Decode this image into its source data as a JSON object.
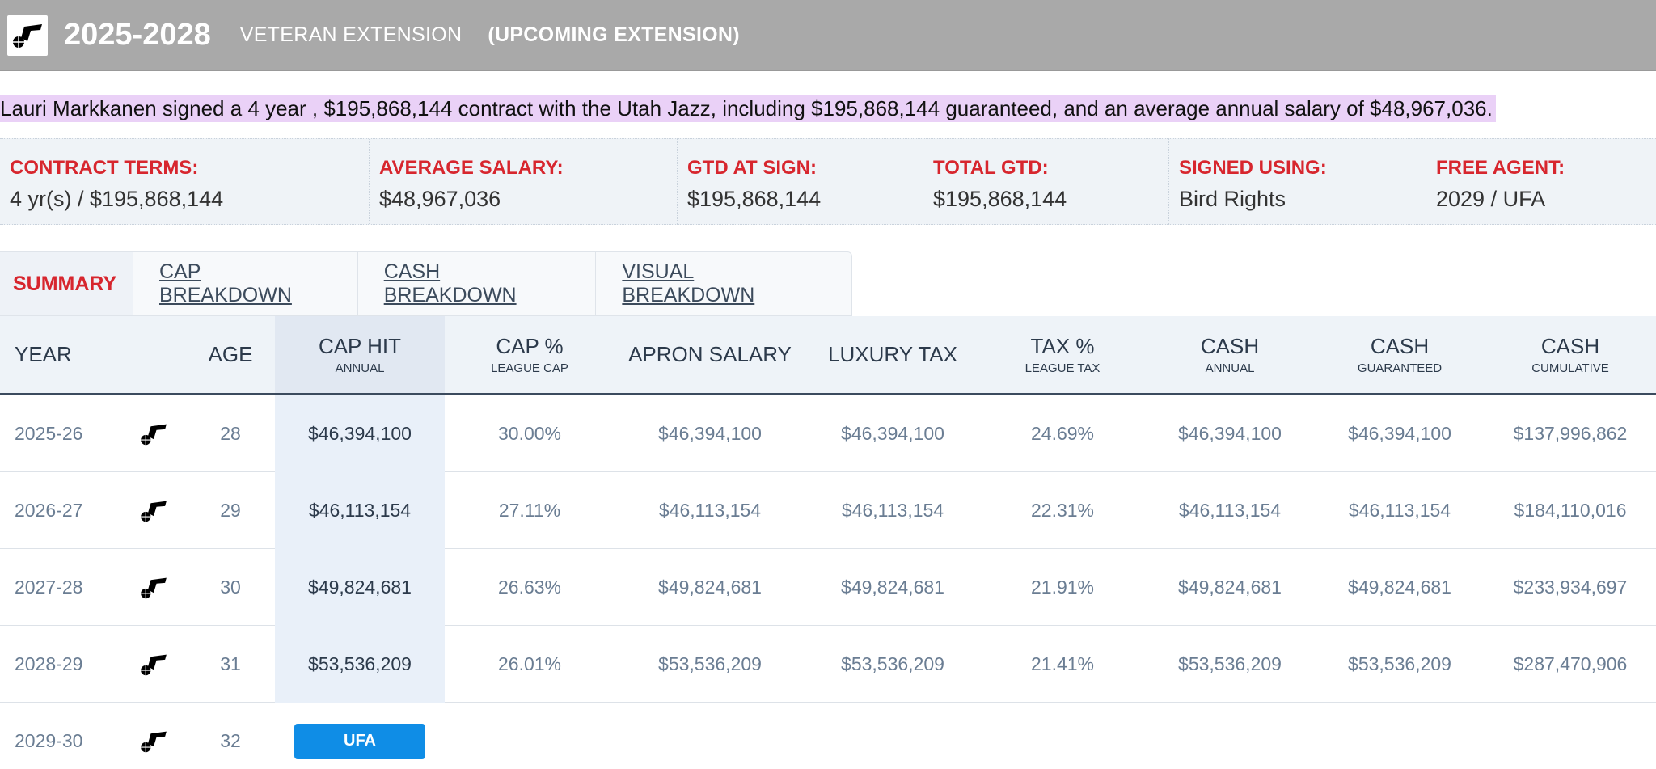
{
  "header": {
    "years": "2025-2028",
    "contract_type": "VETERAN EXTENSION",
    "note": "(UPCOMING EXTENSION)",
    "logo_icon": "utah-jazz-logo-icon"
  },
  "summary_text": "Lauri Markkanen signed a 4 year , $195,868,144 contract with the Utah Jazz, including $195,868,144 guaranteed, and an average annual salary of $48,967,036.",
  "terms": [
    {
      "label": "CONTRACT TERMS:",
      "value": "4 yr(s) / $195,868,144"
    },
    {
      "label": "AVERAGE SALARY:",
      "value": "$48,967,036"
    },
    {
      "label": "GTD AT SIGN:",
      "value": "$195,868,144"
    },
    {
      "label": "TOTAL GTD:",
      "value": "$195,868,144"
    },
    {
      "label": "SIGNED USING:",
      "value": "Bird Rights"
    },
    {
      "label": "FREE AGENT:",
      "value": "2029 / UFA"
    }
  ],
  "tabs": [
    {
      "label": "SUMMARY",
      "active": true
    },
    {
      "label": "CAP BREAKDOWN",
      "active": false
    },
    {
      "label": "CASH BREAKDOWN",
      "active": false
    },
    {
      "label": "VISUAL BREAKDOWN",
      "active": false
    }
  ],
  "table": {
    "headers": [
      {
        "main": "YEAR",
        "sub": ""
      },
      {
        "main": "",
        "sub": ""
      },
      {
        "main": "AGE",
        "sub": ""
      },
      {
        "main": "CAP HIT",
        "sub": "ANNUAL"
      },
      {
        "main": "CAP %",
        "sub": "LEAGUE CAP"
      },
      {
        "main": "APRON SALARY",
        "sub": ""
      },
      {
        "main": "LUXURY TAX",
        "sub": ""
      },
      {
        "main": "TAX %",
        "sub": "LEAGUE TAX"
      },
      {
        "main": "CASH",
        "sub": "ANNUAL"
      },
      {
        "main": "CASH",
        "sub": "GUARANTEED"
      },
      {
        "main": "CASH",
        "sub": "CUMULATIVE"
      }
    ],
    "rows": [
      {
        "year": "2025-26",
        "age": "28",
        "cap_hit": "$46,394,100",
        "cap_pct": "30.00%",
        "apron": "$46,394,100",
        "lux_tax": "$46,394,100",
        "tax_pct": "24.69%",
        "cash_annual": "$46,394,100",
        "cash_gtd": "$46,394,100",
        "cash_cum": "$137,996,862"
      },
      {
        "year": "2026-27",
        "age": "29",
        "cap_hit": "$46,113,154",
        "cap_pct": "27.11%",
        "apron": "$46,113,154",
        "lux_tax": "$46,113,154",
        "tax_pct": "22.31%",
        "cash_annual": "$46,113,154",
        "cash_gtd": "$46,113,154",
        "cash_cum": "$184,110,016"
      },
      {
        "year": "2027-28",
        "age": "30",
        "cap_hit": "$49,824,681",
        "cap_pct": "26.63%",
        "apron": "$49,824,681",
        "lux_tax": "$49,824,681",
        "tax_pct": "21.91%",
        "cash_annual": "$49,824,681",
        "cash_gtd": "$49,824,681",
        "cash_cum": "$233,934,697"
      },
      {
        "year": "2028-29",
        "age": "31",
        "cap_hit": "$53,536,209",
        "cap_pct": "26.01%",
        "apron": "$53,536,209",
        "lux_tax": "$53,536,209",
        "tax_pct": "21.41%",
        "cash_annual": "$53,536,209",
        "cash_gtd": "$53,536,209",
        "cash_cum": "$287,470,906"
      }
    ],
    "ufa_row": {
      "year": "2029-30",
      "age": "32",
      "badge": "UFA"
    }
  },
  "colors": {
    "header_bg": "#a9a9a9",
    "label_red": "#d7262e",
    "ufa_blue": "#0f8de6",
    "highlight": "#ead1f7"
  }
}
